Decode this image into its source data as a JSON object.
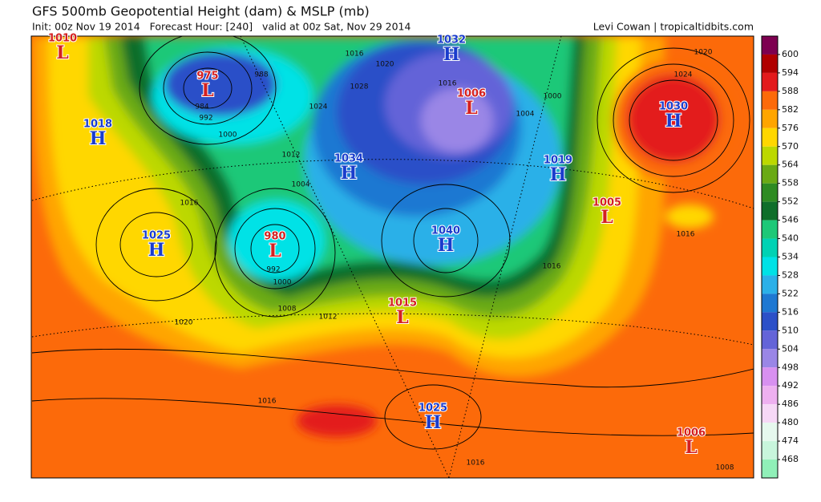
{
  "header": {
    "title": "GFS 500mb Geopotential Height (dam) & MSLP (mb)",
    "subtitle": "Init: 00z Nov 19 2014   Forecast Hour: [240]   valid at 00z Sat, Nov 29 2014",
    "credit": "Levi Cowan | tropicaltidbits.com"
  },
  "colorbar": {
    "levels": [
      600,
      594,
      588,
      582,
      576,
      570,
      564,
      558,
      552,
      546,
      540,
      534,
      528,
      522,
      516,
      510,
      504,
      498,
      492,
      486,
      480,
      474,
      468
    ],
    "colors": [
      "#7d0050",
      "#b00000",
      "#e31a1c",
      "#fc6a0a",
      "#ffa500",
      "#ffd700",
      "#bcd800",
      "#6aaa14",
      "#2e8b22",
      "#0f6e2a",
      "#1dc878",
      "#00d2b4",
      "#00e2e6",
      "#2bb0e8",
      "#1e78d2",
      "#2c50c8",
      "#6464d8",
      "#9a86e6",
      "#d890f0",
      "#eeb0f0",
      "#f6d8f6",
      "#e6f8ee",
      "#c8f5dc",
      "#90f0b8"
    ]
  },
  "pressure_centers": [
    {
      "symbol": "L",
      "pressure": 1010
    },
    {
      "symbol": "L",
      "pressure": 975
    },
    {
      "symbol": "H",
      "pressure": 1018
    },
    {
      "symbol": "H",
      "pressure": 1025
    },
    {
      "symbol": "L",
      "pressure": 980
    },
    {
      "symbol": "H",
      "pressure": 1034
    },
    {
      "symbol": "H",
      "pressure": 1032
    },
    {
      "symbol": "L",
      "pressure": 1006
    },
    {
      "symbol": "H",
      "pressure": 1040
    },
    {
      "symbol": "L",
      "pressure": 1015
    },
    {
      "symbol": "H",
      "pressure": 1019
    },
    {
      "symbol": "L",
      "pressure": 1005
    },
    {
      "symbol": "H",
      "pressure": 1030
    },
    {
      "symbol": "H",
      "pressure": 1025
    },
    {
      "symbol": "L",
      "pressure": 1006
    }
  ],
  "isobar_labels": [
    1016,
    1020,
    1028,
    1024,
    1016,
    1000,
    1004,
    988,
    984,
    992,
    1000,
    1012,
    1004,
    1016,
    1016,
    1016,
    992,
    1000,
    1008,
    1012,
    1020,
    1016,
    1016,
    1008,
    1020,
    1024
  ]
}
